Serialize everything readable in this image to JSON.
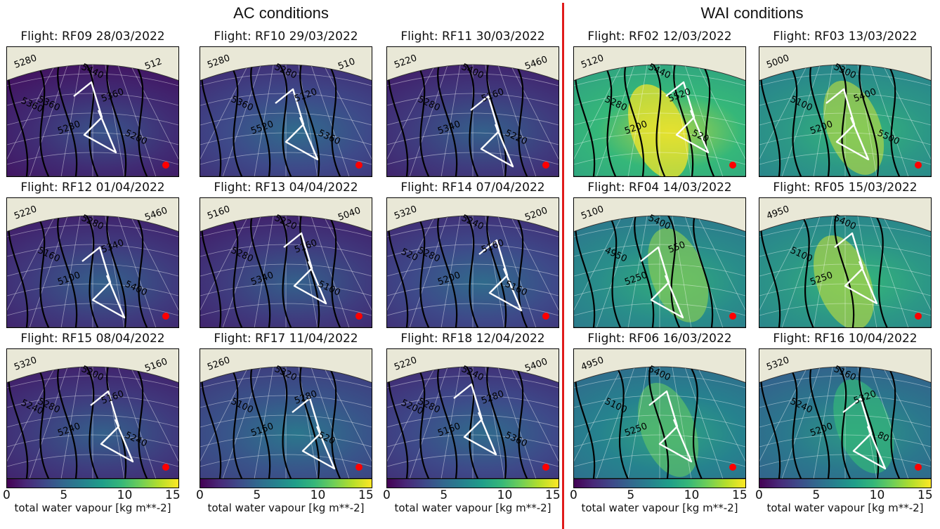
{
  "sections": {
    "ac_title": "AC conditions",
    "wai_title": "WAI conditions"
  },
  "panels": [
    {
      "title": "Flight: RF09 28/03/2022",
      "group": "AC",
      "tvw": 0.15,
      "contours": [
        "5280",
        "5360",
        "5280",
        "5440",
        "5360",
        "5200",
        "512",
        "5360"
      ]
    },
    {
      "title": "Flight: RF10 29/03/2022",
      "group": "AC",
      "tvw": 0.25,
      "contours": [
        "5280",
        "5360",
        "5520",
        "5280",
        "5120",
        "5360",
        "510"
      ]
    },
    {
      "title": "Flight: RF11 30/03/2022",
      "group": "AC",
      "tvw": 0.2,
      "contours": [
        "5220",
        "5280",
        "5340",
        "5400",
        "5160",
        "5220",
        "5460"
      ]
    },
    {
      "title": "Flight: RF02 12/03/2022",
      "group": "WAI",
      "tvw": 0.75,
      "contours": [
        "5120",
        "5280",
        "5200",
        "5440",
        "5520",
        "520"
      ]
    },
    {
      "title": "Flight: RF03 13/03/2022",
      "group": "WAI",
      "tvw": 0.6,
      "contours": [
        "5000",
        "5100",
        "5200",
        "5300",
        "5400",
        "5500"
      ]
    },
    {
      "title": "Flight: RF12 01/04/2022",
      "group": "AC",
      "tvw": 0.2,
      "contours": [
        "5220",
        "5160",
        "5100",
        "5280",
        "5340",
        "5400",
        "5460"
      ]
    },
    {
      "title": "Flight: RF13 04/04/2022",
      "group": "AC",
      "tvw": 0.2,
      "contours": [
        "5160",
        "5280",
        "5340",
        "5220",
        "5160",
        "5100",
        "5040"
      ]
    },
    {
      "title": "Flight: RF14 07/04/2022",
      "group": "AC",
      "tvw": 0.25,
      "contours": [
        "5320",
        "5280",
        "5200",
        "5240",
        "5160",
        "5160",
        "5200",
        "520"
      ]
    },
    {
      "title": "Flight: RF04 14/03/2022",
      "group": "WAI",
      "tvw": 0.55,
      "contours": [
        "5100",
        "4950",
        "5250",
        "5400",
        "550"
      ]
    },
    {
      "title": "Flight: RF05 15/03/2022",
      "group": "WAI",
      "tvw": 0.6,
      "contours": [
        "4950",
        "5100",
        "5250",
        "5400"
      ]
    },
    {
      "title": "Flight: RF15 08/04/2022",
      "group": "AC",
      "tvw": 0.2,
      "contours": [
        "5320",
        "5280",
        "5240",
        "5200",
        "5160",
        "5240",
        "5160",
        "5240"
      ]
    },
    {
      "title": "Flight: RF17 11/04/2022",
      "group": "AC",
      "tvw": 0.3,
      "contours": [
        "5260",
        "5100",
        "5160",
        "5320",
        "5280",
        "520"
      ]
    },
    {
      "title": "Flight: RF18 12/04/2022",
      "group": "AC",
      "tvw": 0.25,
      "contours": [
        "5220",
        "5280",
        "5160",
        "5240",
        "5280",
        "5360",
        "5400",
        "5200"
      ]
    },
    {
      "title": "Flight: RF06 16/03/2022",
      "group": "WAI",
      "tvw": 0.5,
      "contours": [
        "4950",
        "5100",
        "5250",
        "5400"
      ]
    },
    {
      "title": "Flight: RF16 10/04/2022",
      "group": "WAI",
      "tvw": 0.45,
      "contours": [
        "5320",
        "5240",
        "5200",
        "5160",
        "5320",
        "80"
      ]
    }
  ],
  "colorbar": {
    "ticks": [
      "0",
      "5",
      "10",
      "15"
    ],
    "label": "total water vapour [kg m**-2]",
    "colormap": [
      "#440154",
      "#3e4989",
      "#26828e",
      "#35b779",
      "#fde725"
    ]
  },
  "colors": {
    "flight_track": "#ffffff",
    "contour": "#000000",
    "marker": "#ff0000",
    "land": "#e9e8d7",
    "divider": "#e01b1b"
  }
}
